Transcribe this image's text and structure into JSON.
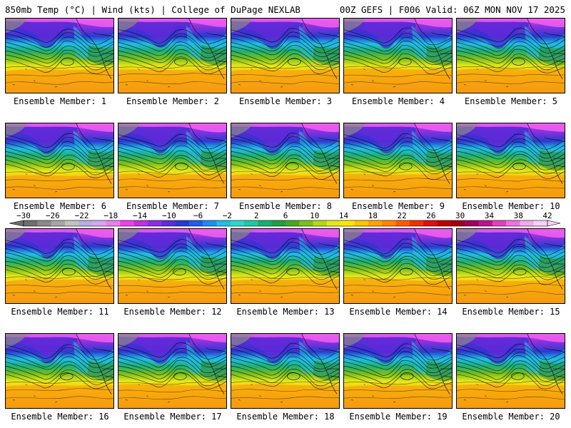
{
  "header": {
    "left_title": "850mb Temp (°C) | Wind (kts) | College of DuPage NEXLAB",
    "right_title": "00Z GEFS | F006 Valid: 06Z MON NOV 17 2025"
  },
  "panels": [
    {
      "label": "Ensemble Member: 1"
    },
    {
      "label": "Ensemble Member: 2"
    },
    {
      "label": "Ensemble Member: 3"
    },
    {
      "label": "Ensemble Member: 4"
    },
    {
      "label": "Ensemble Member: 5"
    },
    {
      "label": "Ensemble Member: 6"
    },
    {
      "label": "Ensemble Member: 7"
    },
    {
      "label": "Ensemble Member: 8"
    },
    {
      "label": "Ensemble Member: 9"
    },
    {
      "label": "Ensemble Member: 10"
    },
    {
      "label": "Ensemble Member: 11"
    },
    {
      "label": "Ensemble Member: 12"
    },
    {
      "label": "Ensemble Member: 13"
    },
    {
      "label": "Ensemble Member: 14"
    },
    {
      "label": "Ensemble Member: 15"
    },
    {
      "label": "Ensemble Member: 16"
    },
    {
      "label": "Ensemble Member: 17"
    },
    {
      "label": "Ensemble Member: 18"
    },
    {
      "label": "Ensemble Member: 19"
    },
    {
      "label": "Ensemble Member: 20"
    }
  ],
  "colorbar": {
    "ticks": [
      "-30",
      "-26",
      "-22",
      "-18",
      "-14",
      "-10",
      "-6",
      "-2",
      "2",
      "6",
      "10",
      "14",
      "18",
      "22",
      "26",
      "30",
      "34",
      "38",
      "42"
    ],
    "colors": [
      "#6e6e6e",
      "#8a8a8a",
      "#a6a6a6",
      "#c2c2c2",
      "#b8aee0",
      "#d3a6f2",
      "#e880f0",
      "#f040e8",
      "#c030e0",
      "#8a2fe0",
      "#5a2fd8",
      "#2a3ad0",
      "#1e5ee6",
      "#1e8ef0",
      "#22bde8",
      "#2ad8d0",
      "#20c8a0",
      "#18b070",
      "#20a040",
      "#46a820",
      "#7ac01c",
      "#b4d818",
      "#e8e818",
      "#ffe800",
      "#ffc400",
      "#ffa400",
      "#ff8400",
      "#ff5a00",
      "#f03000",
      "#e00e0e",
      "#c00000",
      "#a00012",
      "#a0005a",
      "#c01090",
      "#e040c0",
      "#f070e0",
      "#f4a8f0",
      "#f8d0f8"
    ]
  }
}
